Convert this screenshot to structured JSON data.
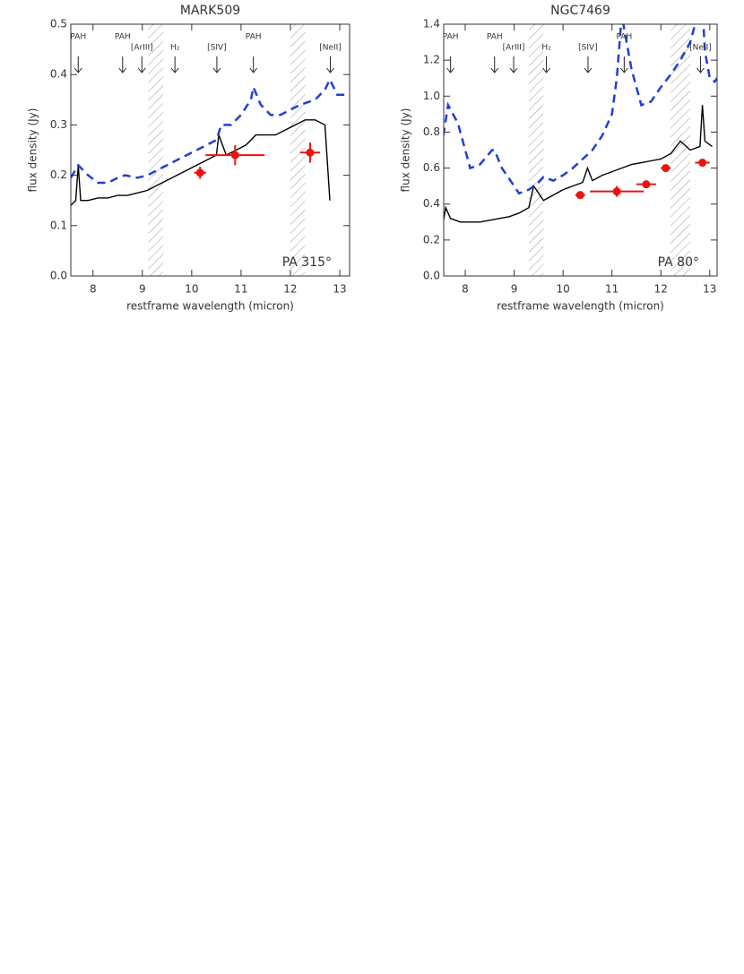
{
  "chart_data": [
    {
      "type": "line",
      "title": "MARK509",
      "xlabel": "restframe wavelength (micron)",
      "ylabel": "flux density (Jy)",
      "xlim": [
        7.55,
        13.2
      ],
      "ylim": [
        0,
        0.5
      ],
      "xticks": [
        8,
        9,
        10,
        11,
        12,
        13
      ],
      "yticks": [
        {
          "value": 0,
          "label": "0.0"
        },
        0.1,
        0.2,
        0.3,
        0.4,
        0.5
      ],
      "annotation": "PA 315°",
      "features": [
        {
          "label": "PAH",
          "x": 7.7
        },
        {
          "label": "PAH",
          "x": 8.6
        },
        {
          "label": "[ArIII]",
          "x": 8.99
        },
        {
          "label": "H₂",
          "x": 9.66
        },
        {
          "label": "[SIV]",
          "x": 10.51
        },
        {
          "label": "PAH",
          "x": 11.25
        },
        {
          "label": "[NeII]",
          "x": 12.81
        }
      ],
      "hatched_regions": [
        [
          9.12,
          9.42
        ],
        [
          12.0,
          12.3
        ]
      ],
      "spectrum": {
        "color": "#000000",
        "x": [
          7.55,
          7.65,
          7.7,
          7.75,
          7.9,
          8.1,
          8.3,
          8.5,
          8.7,
          8.9,
          9.1,
          9.3,
          9.5,
          9.7,
          9.9,
          10.1,
          10.3,
          10.5,
          10.55,
          10.7,
          10.9,
          11.1,
          11.3,
          11.5,
          11.7,
          11.9,
          12.1,
          12.3,
          12.5,
          12.7,
          12.8
        ],
        "values": [
          0.14,
          0.15,
          0.22,
          0.15,
          0.15,
          0.155,
          0.155,
          0.16,
          0.16,
          0.165,
          0.17,
          0.18,
          0.19,
          0.2,
          0.21,
          0.22,
          0.23,
          0.24,
          0.28,
          0.24,
          0.25,
          0.26,
          0.28,
          0.28,
          0.28,
          0.29,
          0.3,
          0.31,
          0.31,
          0.3,
          0.15
        ]
      },
      "model": {
        "color": "#1f3fd6",
        "x": [
          7.55,
          7.7,
          7.9,
          8.1,
          8.3,
          8.5,
          8.65,
          8.9,
          9.1,
          9.3,
          9.5,
          9.7,
          9.9,
          10.1,
          10.3,
          10.5,
          10.6,
          10.8,
          11.0,
          11.2,
          11.25,
          11.4,
          11.6,
          11.8,
          12.0,
          12.2,
          12.5,
          12.7,
          12.8,
          12.95,
          13.15
        ],
        "values": [
          0.195,
          0.22,
          0.2,
          0.185,
          0.185,
          0.195,
          0.2,
          0.195,
          0.2,
          0.21,
          0.22,
          0.23,
          0.24,
          0.25,
          0.26,
          0.27,
          0.3,
          0.3,
          0.32,
          0.35,
          0.375,
          0.34,
          0.32,
          0.32,
          0.33,
          0.34,
          0.35,
          0.37,
          0.39,
          0.36,
          0.36
        ]
      },
      "photometry": {
        "color": "#ee1111",
        "x": [
          10.17,
          10.88,
          12.4
        ],
        "values": [
          0.205,
          0.24,
          0.245
        ],
        "xerr": [
          0.12,
          0.6,
          0.2
        ],
        "yerr": [
          0.012,
          0.02,
          0.02
        ]
      }
    },
    {
      "type": "line",
      "title": "NGC7469",
      "xlabel": "restframe wavelength (micron)",
      "ylabel": "flux density (Jy)",
      "xlim": [
        7.56,
        13.15
      ],
      "ylim": [
        0,
        1.4
      ],
      "xticks": [
        8,
        9,
        10,
        11,
        12,
        13
      ],
      "yticks": [
        {
          "value": 0,
          "label": "0.0"
        },
        0.2,
        0.4,
        0.6,
        0.8,
        {
          "value": 1,
          "label": "1.0"
        },
        1.2,
        1.4
      ],
      "annotation": "PA 80°",
      "features": [
        {
          "label": "PAH",
          "x": 7.7
        },
        {
          "label": "PAH",
          "x": 8.6
        },
        {
          "label": "[ArIII]",
          "x": 8.99
        },
        {
          "label": "H₂",
          "x": 9.66
        },
        {
          "label": "[SIV]",
          "x": 10.51
        },
        {
          "label": "PAH",
          "x": 11.25
        },
        {
          "label": "[NeII]",
          "x": 12.81
        }
      ],
      "hatched_regions": [
        [
          9.3,
          9.6
        ],
        [
          12.2,
          12.6
        ]
      ],
      "spectrum": {
        "color": "#000000",
        "x": [
          7.55,
          7.6,
          7.7,
          7.9,
          8.1,
          8.3,
          8.5,
          8.7,
          8.9,
          9.1,
          9.3,
          9.4,
          9.6,
          9.8,
          10.0,
          10.2,
          10.4,
          10.5,
          10.6,
          10.8,
          11.0,
          11.2,
          11.4,
          11.6,
          11.8,
          12.0,
          12.2,
          12.4,
          12.6,
          12.8,
          12.85,
          12.9,
          13.05
        ],
        "values": [
          0.3,
          0.38,
          0.32,
          0.3,
          0.3,
          0.3,
          0.31,
          0.32,
          0.33,
          0.35,
          0.38,
          0.5,
          0.42,
          0.45,
          0.48,
          0.5,
          0.52,
          0.6,
          0.53,
          0.56,
          0.58,
          0.6,
          0.62,
          0.63,
          0.64,
          0.65,
          0.68,
          0.75,
          0.7,
          0.72,
          0.95,
          0.75,
          0.72
        ]
      },
      "model": {
        "color": "#1f3fd6",
        "x": [
          7.55,
          7.65,
          7.85,
          8.0,
          8.1,
          8.3,
          8.55,
          8.6,
          8.75,
          8.95,
          9.1,
          9.3,
          9.5,
          9.6,
          9.8,
          10.0,
          10.2,
          10.4,
          10.6,
          10.8,
          11.0,
          11.1,
          11.2,
          11.4,
          11.6,
          11.8,
          12.0,
          12.2,
          12.4,
          12.6,
          12.75,
          12.85,
          12.9,
          13.0,
          13.1,
          13.15
        ],
        "values": [
          0.78,
          0.95,
          0.85,
          0.7,
          0.6,
          0.62,
          0.7,
          0.7,
          0.6,
          0.52,
          0.46,
          0.48,
          0.52,
          0.55,
          0.53,
          0.56,
          0.6,
          0.65,
          0.7,
          0.78,
          0.9,
          1.1,
          1.45,
          1.15,
          0.95,
          0.97,
          1.05,
          1.12,
          1.2,
          1.3,
          1.45,
          1.5,
          1.25,
          1.1,
          1.08,
          1.1
        ]
      },
      "photometry": {
        "color": "#ee1111",
        "x": [
          10.35,
          11.1,
          11.7,
          12.1,
          12.85
        ],
        "values": [
          0.45,
          0.47,
          0.51,
          0.6,
          0.63
        ],
        "xerr": [
          0.1,
          0.55,
          0.2,
          0.1,
          0.15
        ],
        "yerr": [
          0.02,
          0.03,
          0.02,
          0.02,
          0.02
        ]
      }
    }
  ]
}
